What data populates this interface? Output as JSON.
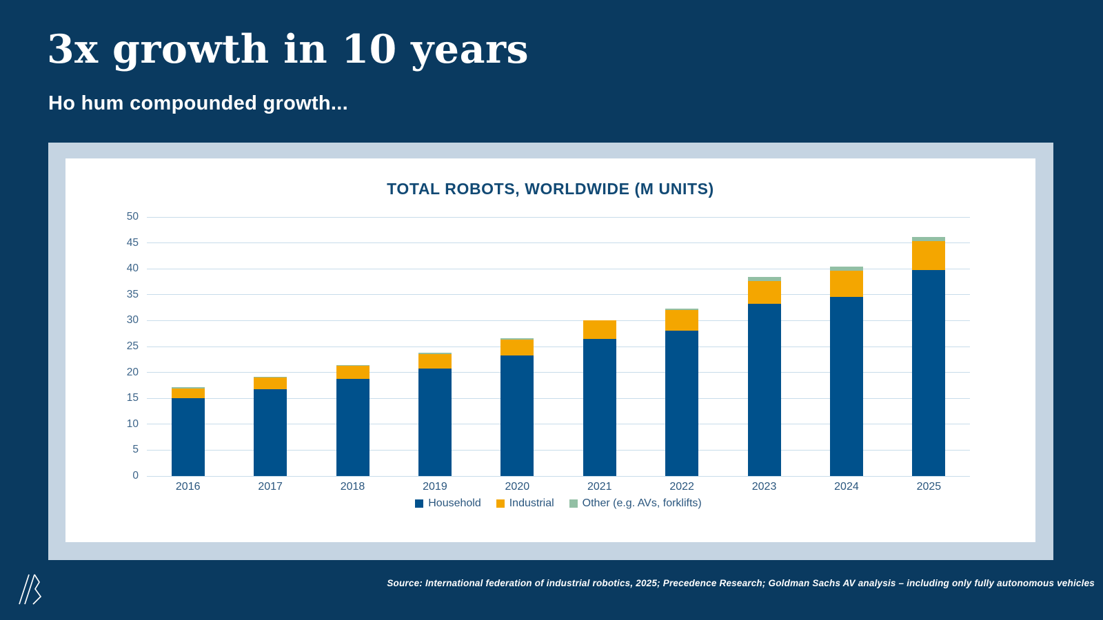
{
  "slide": {
    "title": "3x growth in 10 years",
    "subtitle": "Ho hum compounded growth...",
    "source": "Source: International federation of industrial robotics, 2025; Precedence Research; Goldman Sachs AV analysis – including only fully autonomous vehicles"
  },
  "colors": {
    "background": "#0a3a60",
    "panel": "#c5d4e2",
    "card": "#ffffff",
    "gridline": "#c8dcea",
    "axis_text": "#3c6489",
    "label_text": "#2a567e",
    "chart_title_text": "#114974"
  },
  "chart_data": {
    "type": "bar",
    "stacked": true,
    "title": "TOTAL ROBOTS, WORLDWIDE (M UNITS)",
    "categories": [
      "2016",
      "2017",
      "2018",
      "2019",
      "2020",
      "2021",
      "2022",
      "2023",
      "2024",
      "2025"
    ],
    "series": [
      {
        "name": "Household",
        "color": "#00518c",
        "values": [
          15.0,
          16.8,
          18.8,
          20.7,
          23.3,
          26.5,
          28.1,
          33.3,
          34.6,
          39.7
        ]
      },
      {
        "name": "Industrial",
        "color": "#f4a600",
        "values": [
          1.9,
          2.2,
          2.5,
          2.9,
          3.1,
          3.5,
          3.9,
          4.4,
          5.0,
          5.7
        ]
      },
      {
        "name": "Other (e.g. AVs, forklifts)",
        "color": "#92bfa4",
        "values": [
          0.2,
          0.2,
          0.1,
          0.2,
          0.2,
          0.1,
          0.3,
          0.7,
          0.8,
          0.8
        ]
      }
    ],
    "totals": [
      17.1,
      19.2,
      21.4,
      23.8,
      26.6,
      30.1,
      32.3,
      38.4,
      40.4,
      46.2
    ],
    "xlabel": "",
    "ylabel": "",
    "ylim": [
      0,
      50
    ],
    "ytick_step": 5,
    "grid": true,
    "legend_position": "bottom"
  }
}
